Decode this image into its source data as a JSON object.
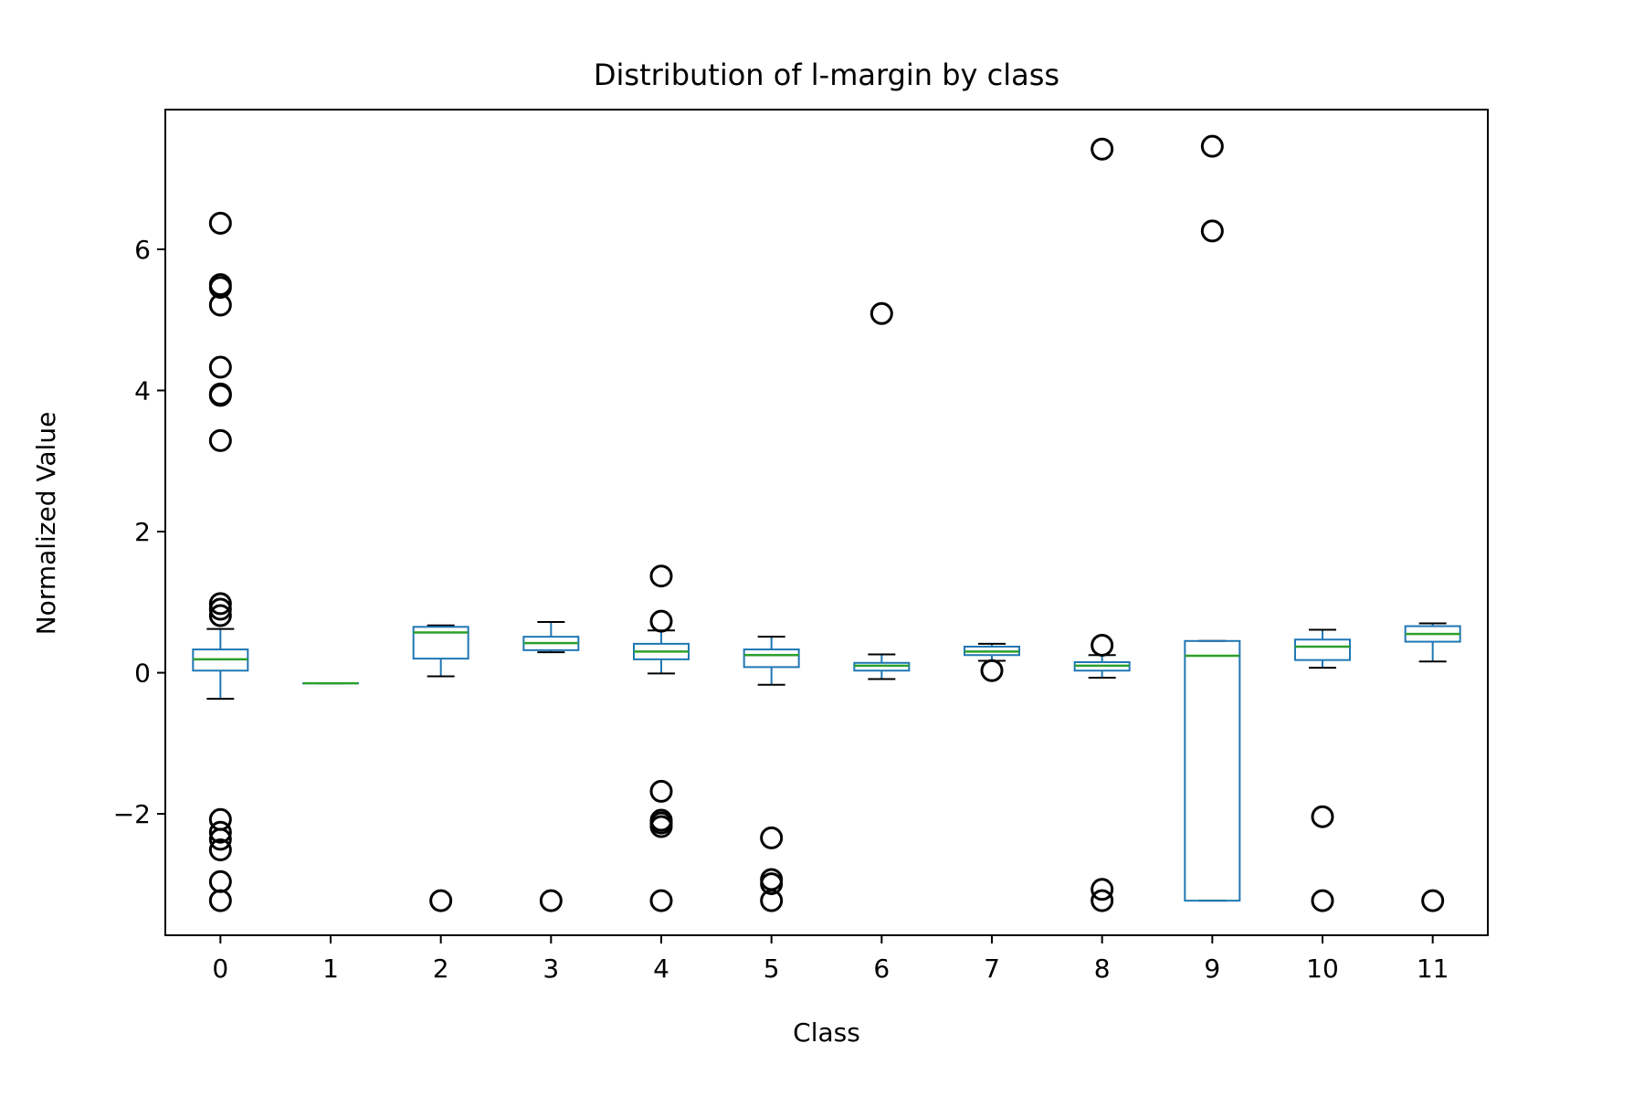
{
  "chart_data": {
    "type": "box",
    "title": "Distribution of l-margin by class",
    "xlabel": "Class",
    "ylabel": "Normalized Value",
    "categories": [
      "0",
      "1",
      "2",
      "3",
      "4",
      "5",
      "6",
      "7",
      "8",
      "9",
      "10",
      "11"
    ],
    "yticks": [
      -2,
      0,
      2,
      4,
      6
    ],
    "ylim": [
      -3.72,
      7.98
    ],
    "grid": false,
    "colors": {
      "box": "#1f77b4",
      "median": "#2ca02c",
      "whisker_cap": "#000000",
      "outlier": "#000000"
    },
    "boxes": [
      {
        "category": "0",
        "whislo": -0.37,
        "q1": 0.03,
        "median": 0.19,
        "q3": 0.33,
        "whishi": 0.62,
        "fliers": [
          6.37,
          5.5,
          5.46,
          5.21,
          4.33,
          3.95,
          3.93,
          3.29,
          0.98,
          0.9,
          0.81,
          -2.08,
          -2.26,
          -2.36,
          -2.51,
          -2.96,
          -3.23
        ]
      },
      {
        "category": "1",
        "whislo": -0.15,
        "q1": -0.15,
        "median": -0.15,
        "q3": -0.15,
        "whishi": -0.15,
        "fliers": []
      },
      {
        "category": "2",
        "whislo": -0.05,
        "q1": 0.2,
        "median": 0.57,
        "q3": 0.65,
        "whishi": 0.67,
        "fliers": [
          -3.23
        ]
      },
      {
        "category": "3",
        "whislo": 0.29,
        "q1": 0.32,
        "median": 0.42,
        "q3": 0.51,
        "whishi": 0.72,
        "fliers": [
          -3.23
        ]
      },
      {
        "category": "4",
        "whislo": -0.01,
        "q1": 0.19,
        "median": 0.3,
        "q3": 0.41,
        "whishi": 0.6,
        "fliers": [
          1.37,
          0.73,
          -1.68,
          -2.09,
          -2.13,
          -2.18,
          -3.23
        ]
      },
      {
        "category": "5",
        "whislo": -0.17,
        "q1": 0.08,
        "median": 0.25,
        "q3": 0.33,
        "whishi": 0.51,
        "fliers": [
          -2.34,
          -2.93,
          -2.99,
          -3.23
        ]
      },
      {
        "category": "6",
        "whislo": -0.09,
        "q1": 0.03,
        "median": 0.1,
        "q3": 0.14,
        "whishi": 0.26,
        "fliers": [
          5.09
        ]
      },
      {
        "category": "7",
        "whislo": 0.17,
        "q1": 0.25,
        "median": 0.3,
        "q3": 0.37,
        "whishi": 0.41,
        "fliers": [
          0.03
        ]
      },
      {
        "category": "8",
        "whislo": -0.07,
        "q1": 0.03,
        "median": 0.1,
        "q3": 0.15,
        "whishi": 0.25,
        "fliers": [
          7.42,
          0.39,
          -3.07,
          -3.23
        ]
      },
      {
        "category": "9",
        "whislo": -3.23,
        "q1": -3.23,
        "median": 0.24,
        "q3": 0.45,
        "whishi": 0.45,
        "fliers": [
          7.46,
          6.26
        ]
      },
      {
        "category": "10",
        "whislo": 0.07,
        "q1": 0.18,
        "median": 0.37,
        "q3": 0.47,
        "whishi": 0.61,
        "fliers": [
          -2.04,
          -3.23
        ]
      },
      {
        "category": "11",
        "whislo": 0.16,
        "q1": 0.44,
        "median": 0.55,
        "q3": 0.66,
        "whishi": 0.7,
        "fliers": [
          -3.23
        ]
      }
    ]
  }
}
